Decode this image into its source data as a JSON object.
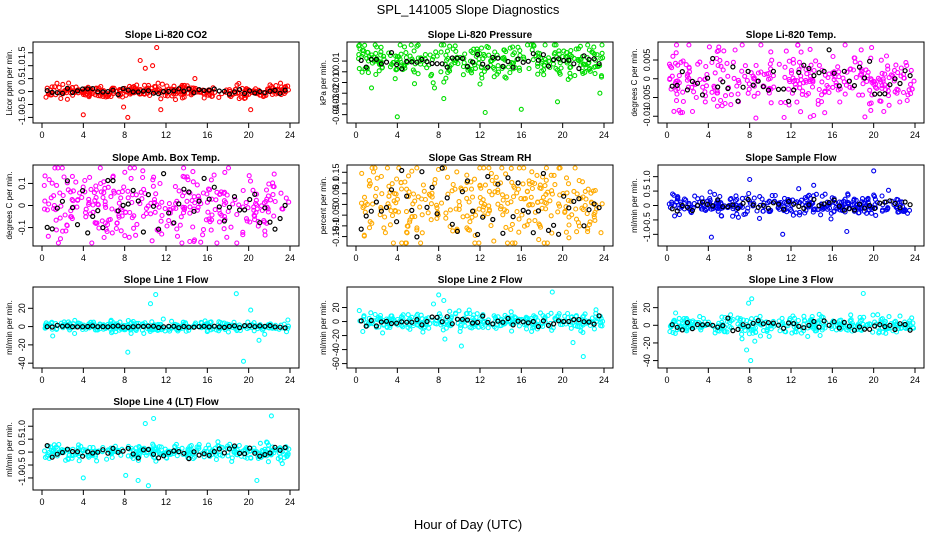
{
  "page": {
    "title": "SPL_141005  Slope Diagnostics",
    "xlabel": "Hour of Day (UTC)"
  },
  "chart_data": [
    {
      "type": "scatter",
      "title": "Slope Li-820 CO2",
      "ylabel": "Licor ppm per min.",
      "color": "#ff0000",
      "xlim": [
        0,
        24
      ],
      "ylim": [
        -1.1,
        1.8
      ],
      "xticks": [
        0,
        4,
        8,
        12,
        16,
        20,
        24
      ],
      "yticks": [
        -1.0,
        -0.5,
        0.0,
        0.5,
        1.0,
        1.5
      ],
      "spread": 0.12,
      "outliers": [
        [
          8.3,
          -1.0
        ],
        [
          9.5,
          1.2
        ],
        [
          10.0,
          0.9
        ],
        [
          10.7,
          1.0
        ],
        [
          11.1,
          1.7
        ],
        [
          11.5,
          -0.7
        ],
        [
          7.9,
          -0.6
        ],
        [
          14.8,
          0.5
        ],
        [
          4.0,
          -0.9
        ],
        [
          20.2,
          -0.7
        ]
      ],
      "black_spread": 0.06
    },
    {
      "type": "scatter",
      "title": "Slope Li-820 Pressure",
      "ylabel": "kPa per min.",
      "color": "#00dd00",
      "xlim": [
        0,
        24
      ],
      "ylim": [
        -0.045,
        0.025
      ],
      "xticks": [
        0,
        4,
        8,
        12,
        16,
        20,
        24
      ],
      "yticks": [
        -0.04,
        -0.03,
        -0.02,
        -0.01,
        0.0,
        0.01
      ],
      "spread": 0.008,
      "outliers": [
        [
          1.5,
          -0.015
        ],
        [
          4.0,
          -0.042
        ],
        [
          8.5,
          -0.025
        ],
        [
          12.5,
          -0.038
        ],
        [
          16.0,
          -0.035
        ],
        [
          19.5,
          -0.028
        ],
        [
          23.6,
          -0.02
        ],
        [
          7.6,
          -0.015
        ]
      ],
      "black_spread": 0.004,
      "center": 0.01
    },
    {
      "type": "scatter",
      "title": "Slope Li-820 Temp.",
      "ylabel": "degrees C per min.",
      "color": "#ff00ff",
      "xlim": [
        0,
        24
      ],
      "ylim": [
        -0.011,
        0.009
      ],
      "xticks": [
        0,
        4,
        8,
        12,
        16,
        20,
        24
      ],
      "yticks": [
        -0.01,
        -0.005,
        0.0,
        0.005
      ],
      "spread": 0.004,
      "outliers": [
        [
          4.1,
          0.0085
        ],
        [
          8.6,
          -0.0105
        ],
        [
          14.2,
          -0.0098
        ],
        [
          19.8,
          0.0083
        ],
        [
          1.5,
          -0.009
        ]
      ],
      "black_spread": 0.003
    },
    {
      "type": "scatter",
      "title": "Slope Amb. Box Temp.",
      "ylabel": "degrees C per min.",
      "color": "#ff00ff",
      "xlim": [
        0,
        24
      ],
      "ylim": [
        -0.17,
        0.17
      ],
      "xticks": [
        0,
        4,
        8,
        12,
        16,
        20,
        24
      ],
      "yticks": [
        -0.1,
        0.0,
        0.1
      ],
      "spread": 0.09,
      "outliers": [],
      "black_spread": 0.07
    },
    {
      "type": "scatter",
      "title": "Slope Gas Stream RH",
      "ylabel": "percent per min.",
      "color": "#ffaa00",
      "xlim": [
        0,
        24
      ],
      "ylim": [
        -0.18,
        0.17
      ],
      "xticks": [
        0,
        4,
        8,
        12,
        16,
        20,
        24
      ],
      "yticks": [
        -0.15,
        -0.1,
        -0.05,
        0.0,
        0.05,
        0.1,
        0.15
      ],
      "spread": 0.09,
      "outliers": [],
      "black_spread": 0.08
    },
    {
      "type": "scatter",
      "title": "Slope Sample Flow",
      "ylabel": "ml/min per min.",
      "color": "#0000ee",
      "xlim": [
        0,
        24
      ],
      "ylim": [
        -1.3,
        1.3
      ],
      "xticks": [
        0,
        4,
        8,
        12,
        16,
        20,
        24
      ],
      "yticks": [
        -1.0,
        -0.5,
        0.0,
        0.5,
        1.0
      ],
      "spread": 0.18,
      "outliers": [
        [
          4.3,
          -1.1
        ],
        [
          8.0,
          0.9
        ],
        [
          20.0,
          1.2
        ],
        [
          11.2,
          -1.0
        ],
        [
          17.4,
          -0.9
        ],
        [
          14.2,
          0.7
        ]
      ],
      "black_spread": 0.12
    },
    {
      "type": "scatter",
      "title": "Slope Line 1 Flow",
      "ylabel": "ml/min per min.",
      "color": "#00ffff",
      "xlim": [
        0,
        24
      ],
      "ylim": [
        -42,
        40
      ],
      "xticks": [
        0,
        4,
        8,
        12,
        16,
        20,
        24
      ],
      "yticks": [
        -40,
        -20,
        0,
        20
      ],
      "spread": 3,
      "outliers": [
        [
          11.0,
          35
        ],
        [
          8.3,
          -28
        ],
        [
          18.8,
          36
        ],
        [
          19.5,
          -38
        ],
        [
          10.5,
          25
        ],
        [
          20.2,
          18
        ],
        [
          21.0,
          -15
        ]
      ],
      "black_spread": 0.6
    },
    {
      "type": "scatter",
      "title": "Slope Line 2 Flow",
      "ylabel": "ml/min per min.",
      "color": "#00ffff",
      "xlim": [
        0,
        24
      ],
      "ylim": [
        -62,
        45
      ],
      "xticks": [
        0,
        4,
        8,
        12,
        16,
        20,
        24
      ],
      "yticks": [
        -60,
        -40,
        -20,
        0,
        20
      ],
      "spread": 6,
      "outliers": [
        [
          8.0,
          38
        ],
        [
          8.5,
          30
        ],
        [
          7.5,
          25
        ],
        [
          19.0,
          42
        ],
        [
          22.0,
          -50
        ],
        [
          8.6,
          -25
        ],
        [
          10.2,
          -35
        ],
        [
          21.0,
          -30
        ]
      ],
      "black_spread": 4
    },
    {
      "type": "scatter",
      "title": "Slope Line 3 Flow",
      "ylabel": "ml/min per min.",
      "color": "#00ffff",
      "xlim": [
        0,
        24
      ],
      "ylim": [
        -45,
        40
      ],
      "xticks": [
        0,
        4,
        8,
        12,
        16,
        20,
        24
      ],
      "yticks": [
        -40,
        -20,
        0,
        20
      ],
      "spread": 5,
      "outliers": [
        [
          7.9,
          25
        ],
        [
          8.2,
          30
        ],
        [
          7.7,
          -28
        ],
        [
          8.1,
          -40
        ],
        [
          19.0,
          36
        ],
        [
          8.5,
          -18
        ]
      ],
      "black_spread": 3
    },
    {
      "type": "scatter",
      "title": "Slope Line 4 (LT) Flow",
      "ylabel": "ml/min per min.",
      "color": "#00ffff",
      "xlim": [
        0,
        24
      ],
      "ylim": [
        -1.35,
        1.55
      ],
      "xticks": [
        0,
        4,
        8,
        12,
        16,
        20,
        24
      ],
      "yticks": [
        -1.0,
        -0.5,
        0.0,
        0.5,
        1.0
      ],
      "spread": 0.15,
      "outliers": [
        [
          10.0,
          1.1
        ],
        [
          10.8,
          1.3
        ],
        [
          9.3,
          -1.1
        ],
        [
          10.3,
          -1.3
        ],
        [
          22.2,
          1.4
        ],
        [
          4.0,
          -1.0
        ],
        [
          20.8,
          -1.1
        ],
        [
          8.1,
          -0.9
        ]
      ],
      "black_spread": 0.12
    }
  ]
}
